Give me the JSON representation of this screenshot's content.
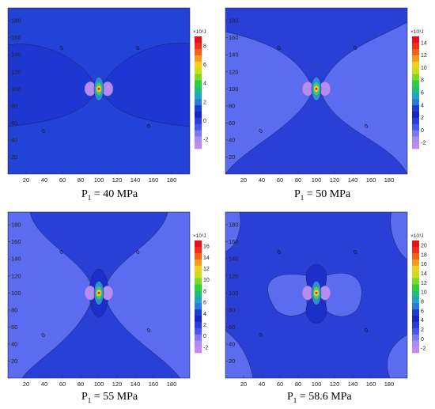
{
  "chart_data": [
    {
      "type": "heatmap",
      "caption_main": "P",
      "caption_sub": "1",
      "caption_rest": " = 40 MPa",
      "x_ticks": [
        20,
        40,
        60,
        80,
        100,
        120,
        140,
        160,
        180
      ],
      "y_ticks": [
        20,
        40,
        60,
        80,
        100,
        120,
        140,
        160,
        180
      ],
      "xlim": [
        0,
        200
      ],
      "ylim": [
        0,
        195
      ],
      "colorbar_unit": "×10³J",
      "colorbar_ticks": [
        -2,
        0,
        2,
        4,
        6,
        8
      ],
      "colorbar_range": [
        -3,
        9
      ],
      "contour_label": "0",
      "source_center": [
        100,
        100
      ]
    },
    {
      "type": "heatmap",
      "caption_main": "P",
      "caption_sub": "1",
      "caption_rest": " = 50 MPa",
      "x_ticks": [
        20,
        40,
        60,
        80,
        100,
        120,
        140,
        160,
        180
      ],
      "y_ticks": [
        20,
        40,
        60,
        80,
        100,
        120,
        140,
        160,
        180
      ],
      "xlim": [
        0,
        200
      ],
      "ylim": [
        0,
        195
      ],
      "colorbar_unit": "×10³J",
      "colorbar_ticks": [
        -2,
        0,
        2,
        4,
        6,
        8,
        10,
        12,
        14
      ],
      "colorbar_range": [
        -3,
        15
      ],
      "contour_label": "0",
      "source_center": [
        100,
        100
      ]
    },
    {
      "type": "heatmap",
      "caption_main": "P",
      "caption_sub": "1",
      "caption_rest": " = 55 MPa",
      "x_ticks": [
        20,
        40,
        60,
        80,
        100,
        120,
        140,
        160,
        180
      ],
      "y_ticks": [
        20,
        40,
        60,
        80,
        100,
        120,
        140,
        160,
        180
      ],
      "xlim": [
        0,
        200
      ],
      "ylim": [
        0,
        195
      ],
      "colorbar_unit": "×10³J",
      "colorbar_ticks": [
        -2,
        0,
        2,
        4,
        6,
        8,
        10,
        12,
        14,
        16
      ],
      "colorbar_range": [
        -3,
        17
      ],
      "contour_label": "0",
      "source_center": [
        100,
        100
      ]
    },
    {
      "type": "heatmap",
      "caption_main": "P",
      "caption_sub": "1",
      "caption_rest": " = 58.6 MPa",
      "x_ticks": [
        20,
        40,
        60,
        80,
        100,
        120,
        140,
        160,
        180
      ],
      "y_ticks": [
        20,
        40,
        60,
        80,
        100,
        120,
        140,
        160,
        180
      ],
      "xlim": [
        0,
        200
      ],
      "ylim": [
        0,
        195
      ],
      "colorbar_unit": "×10³J",
      "colorbar_ticks": [
        -2,
        0,
        2,
        4,
        6,
        8,
        10,
        12,
        14,
        16,
        18,
        20
      ],
      "colorbar_range": [
        -3,
        21
      ],
      "contour_label": "0",
      "source_center": [
        100,
        100
      ]
    }
  ]
}
